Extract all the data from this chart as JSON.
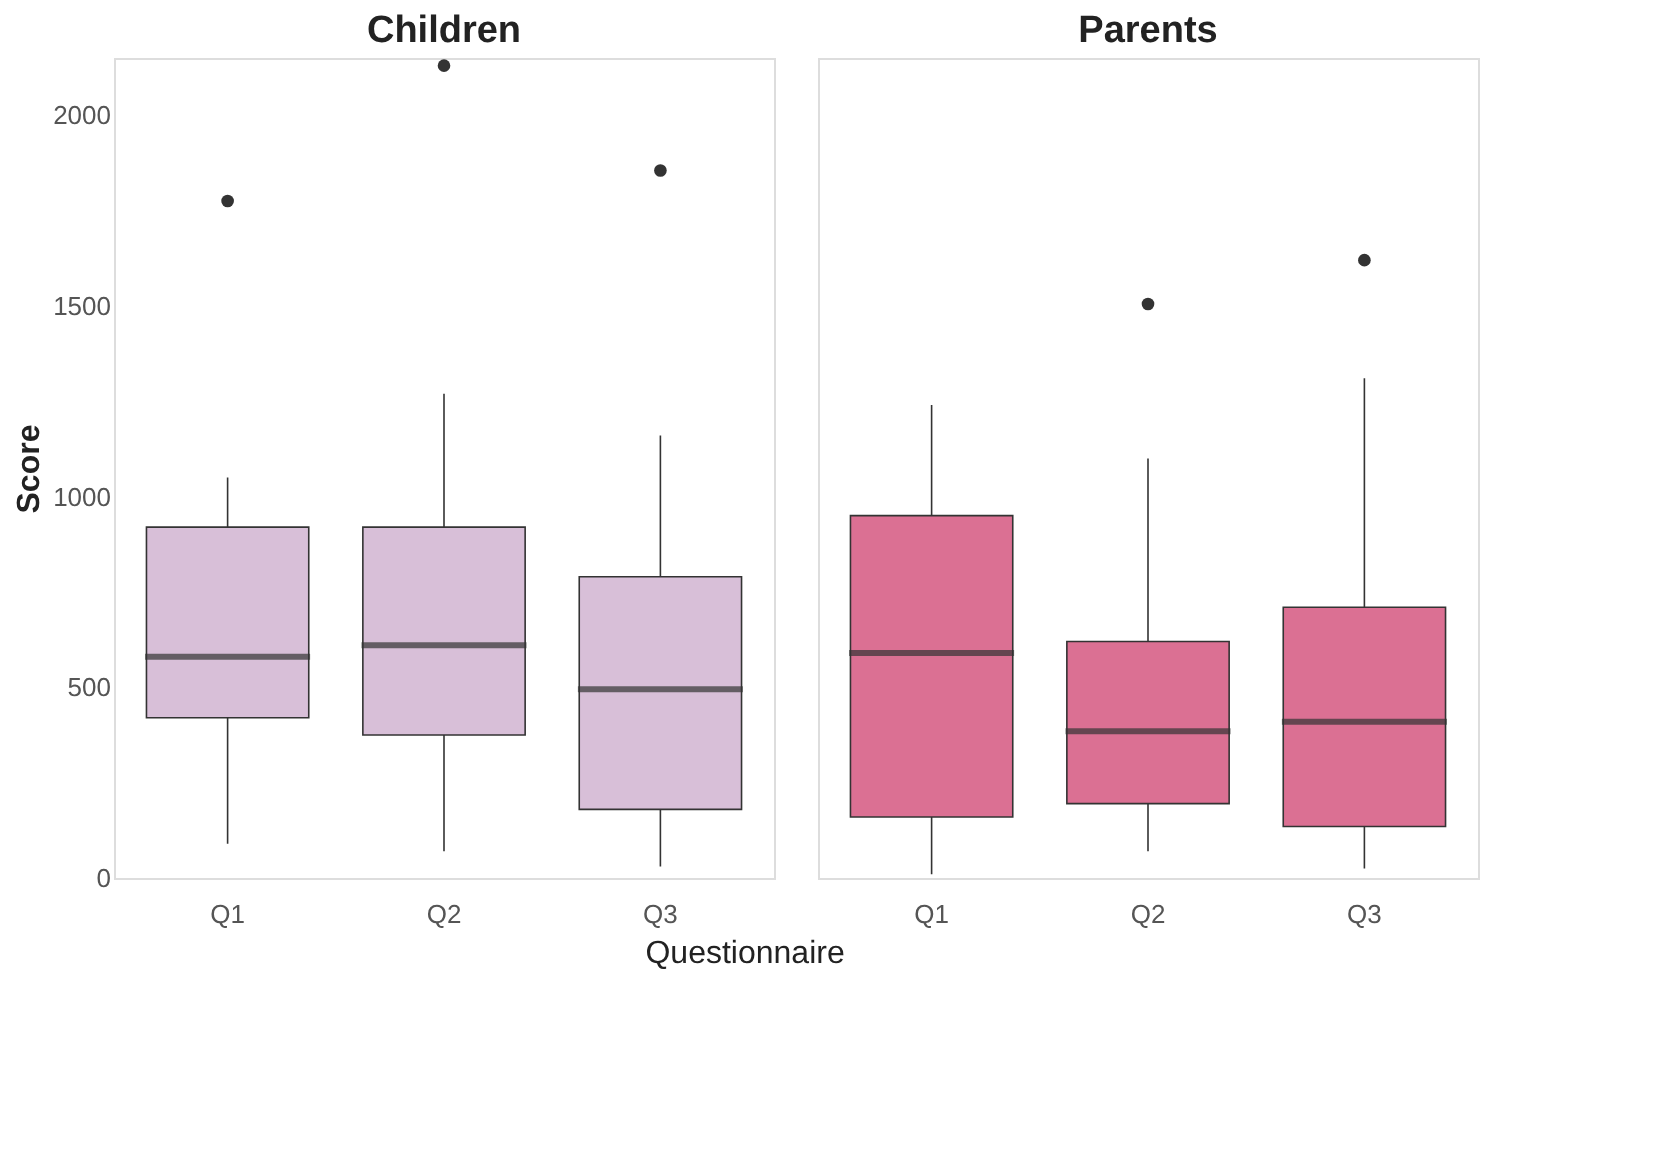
{
  "chart_data": [
    {
      "type": "box",
      "title": "Children",
      "xlabel": "Questionnaire",
      "ylabel": "Score",
      "categories": [
        "Q1",
        "Q2",
        "Q3"
      ],
      "ylim": [
        0,
        2150
      ],
      "yticks": [
        0,
        500,
        1000,
        1500,
        2000
      ],
      "grid": false,
      "series": [
        {
          "color": "#d8bfd8",
          "boxes": [
            {
              "low": 90,
              "q1": 420,
              "median": 580,
              "q3": 920,
              "high": 1050,
              "outliers": [
                1775
              ]
            },
            {
              "low": 70,
              "q1": 375,
              "median": 610,
              "q3": 920,
              "high": 1270,
              "outliers": [
                2130
              ]
            },
            {
              "low": 30,
              "q1": 180,
              "median": 495,
              "q3": 790,
              "high": 1160,
              "outliers": [
                1855
              ]
            }
          ]
        }
      ]
    },
    {
      "type": "box",
      "title": "Parents",
      "categories": [
        "Q1",
        "Q2",
        "Q3"
      ],
      "ylim": [
        0,
        2150
      ],
      "yticks": [
        0,
        500,
        1000,
        1500,
        2000
      ],
      "grid": false,
      "tick_labels": "x",
      "series": [
        {
          "color": "#db7093",
          "boxes": [
            {
              "low": 10,
              "q1": 160,
              "median": 590,
              "q3": 950,
              "high": 1240
            },
            {
              "low": 70,
              "q1": 195,
              "median": 385,
              "q3": 620,
              "high": 1100,
              "outliers": [
                1505
              ]
            },
            {
              "low": 25,
              "q1": 135,
              "median": 410,
              "q3": 710,
              "high": 1310,
              "outliers": [
                1620
              ]
            }
          ]
        }
      ]
    }
  ]
}
